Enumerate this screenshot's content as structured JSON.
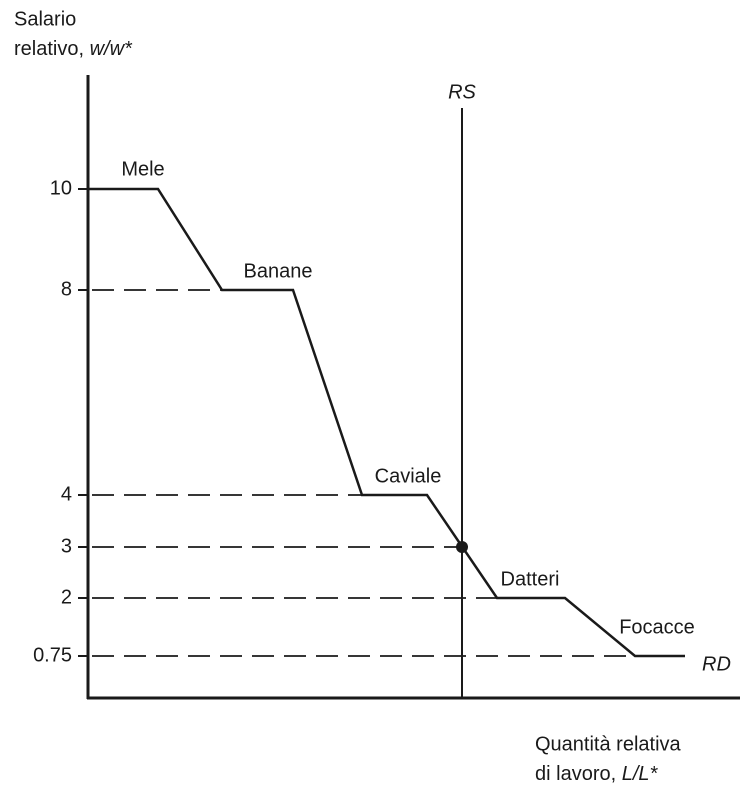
{
  "y_axis": {
    "label": [
      "Salario",
      "relativo, ",
      "w/w*"
    ],
    "ticks": [
      "10",
      "8",
      "4",
      "3",
      "2",
      "0.75"
    ]
  },
  "x_axis": {
    "label": [
      "Quantità relativa",
      "di lavoro, ",
      "L/L*"
    ]
  },
  "curves": {
    "supply": "RS",
    "demand": "RD"
  },
  "goods": [
    "Mele",
    "Banane",
    "Caviale",
    "Datteri",
    "Focacce"
  ]
}
